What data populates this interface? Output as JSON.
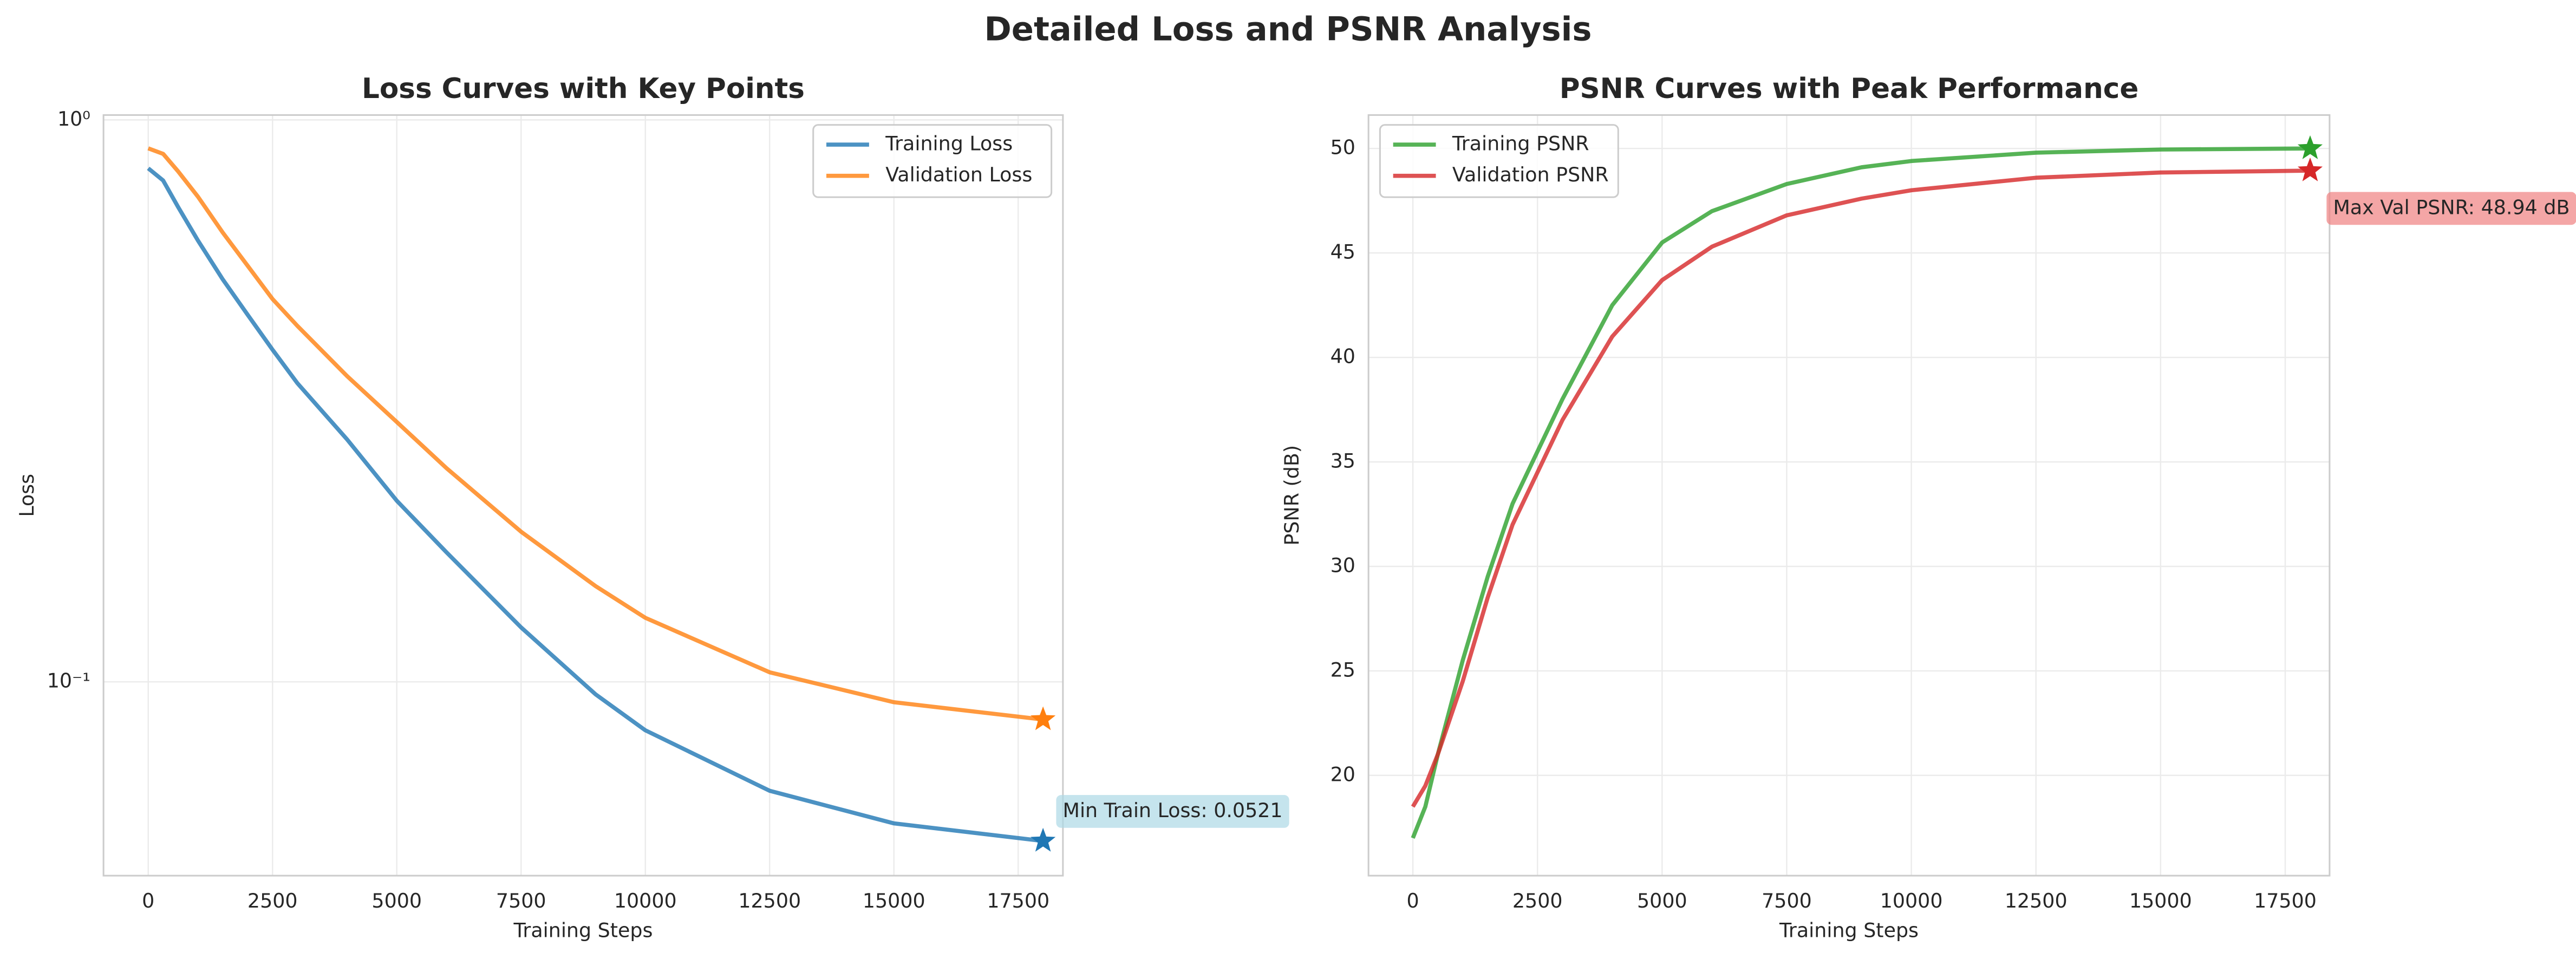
{
  "title": "Detailed Loss and PSNR Analysis",
  "chart_data": [
    {
      "type": "line",
      "title": "Loss Curves with Key Points",
      "xlabel": "Training Steps",
      "ylabel": "Loss",
      "log_y": true,
      "grid": true,
      "legend": "upper right",
      "xlim": [
        -900,
        18400
      ],
      "ylim": [
        0.0452,
        1.02
      ],
      "xticks": [
        0,
        2500,
        5000,
        7500,
        10000,
        12500,
        15000,
        17500
      ],
      "yticks": [
        {
          "value": 1,
          "label": "10⁰"
        },
        {
          "value": 0.1,
          "label": "10⁻¹"
        }
      ],
      "x": [
        0,
        300,
        600,
        1000,
        1500,
        2000,
        2500,
        3000,
        4000,
        5000,
        6000,
        7500,
        9000,
        10000,
        12500,
        15000,
        18000
      ],
      "series": [
        {
          "name": "Training Loss",
          "color": "#1f77b4",
          "values": [
            0.82,
            0.78,
            0.7,
            0.61,
            0.52,
            0.45,
            0.39,
            0.34,
            0.27,
            0.21,
            0.17,
            0.125,
            0.095,
            0.082,
            0.064,
            0.056,
            0.0521
          ]
        },
        {
          "name": "Validation Loss",
          "color": "#ff7f0e",
          "values": [
            0.89,
            0.87,
            0.81,
            0.73,
            0.63,
            0.55,
            0.48,
            0.43,
            0.35,
            0.29,
            0.24,
            0.185,
            0.148,
            0.13,
            0.104,
            0.092,
            0.0857
          ]
        }
      ],
      "annotation": "Min Train Loss: 0.0521",
      "annotation_color": "#add8e6"
    },
    {
      "type": "line",
      "title": "PSNR Curves with Peak Performance",
      "xlabel": "Training Steps",
      "ylabel": "PSNR (dB)",
      "log_y": false,
      "grid": true,
      "legend": "upper left",
      "xlim": [
        -890,
        18390
      ],
      "ylim": [
        15.2,
        51.6
      ],
      "xticks": [
        0,
        2500,
        5000,
        7500,
        10000,
        12500,
        15000,
        17500
      ],
      "yticks": [
        20,
        25,
        30,
        35,
        40,
        45,
        50
      ],
      "x": [
        0,
        250,
        500,
        1000,
        1500,
        2000,
        3000,
        4000,
        5000,
        6000,
        7500,
        9000,
        10000,
        12500,
        15000,
        18000
      ],
      "series": [
        {
          "name": "Training PSNR",
          "color": "#2ca02c",
          "values": [
            17,
            18.5,
            21,
            25.5,
            29.5,
            33,
            38,
            42.5,
            45.5,
            47,
            48.3,
            49.1,
            49.4,
            49.8,
            49.95,
            50.0
          ]
        },
        {
          "name": "Validation PSNR",
          "color": "#d62728",
          "values": [
            18.5,
            19.5,
            21,
            24.5,
            28.5,
            32,
            37,
            41,
            43.7,
            45.3,
            46.8,
            47.6,
            48.0,
            48.6,
            48.85,
            48.94
          ]
        }
      ],
      "annotation": "Max Val PSNR: 48.94 dB",
      "annotation_color": "#f08080"
    }
  ]
}
